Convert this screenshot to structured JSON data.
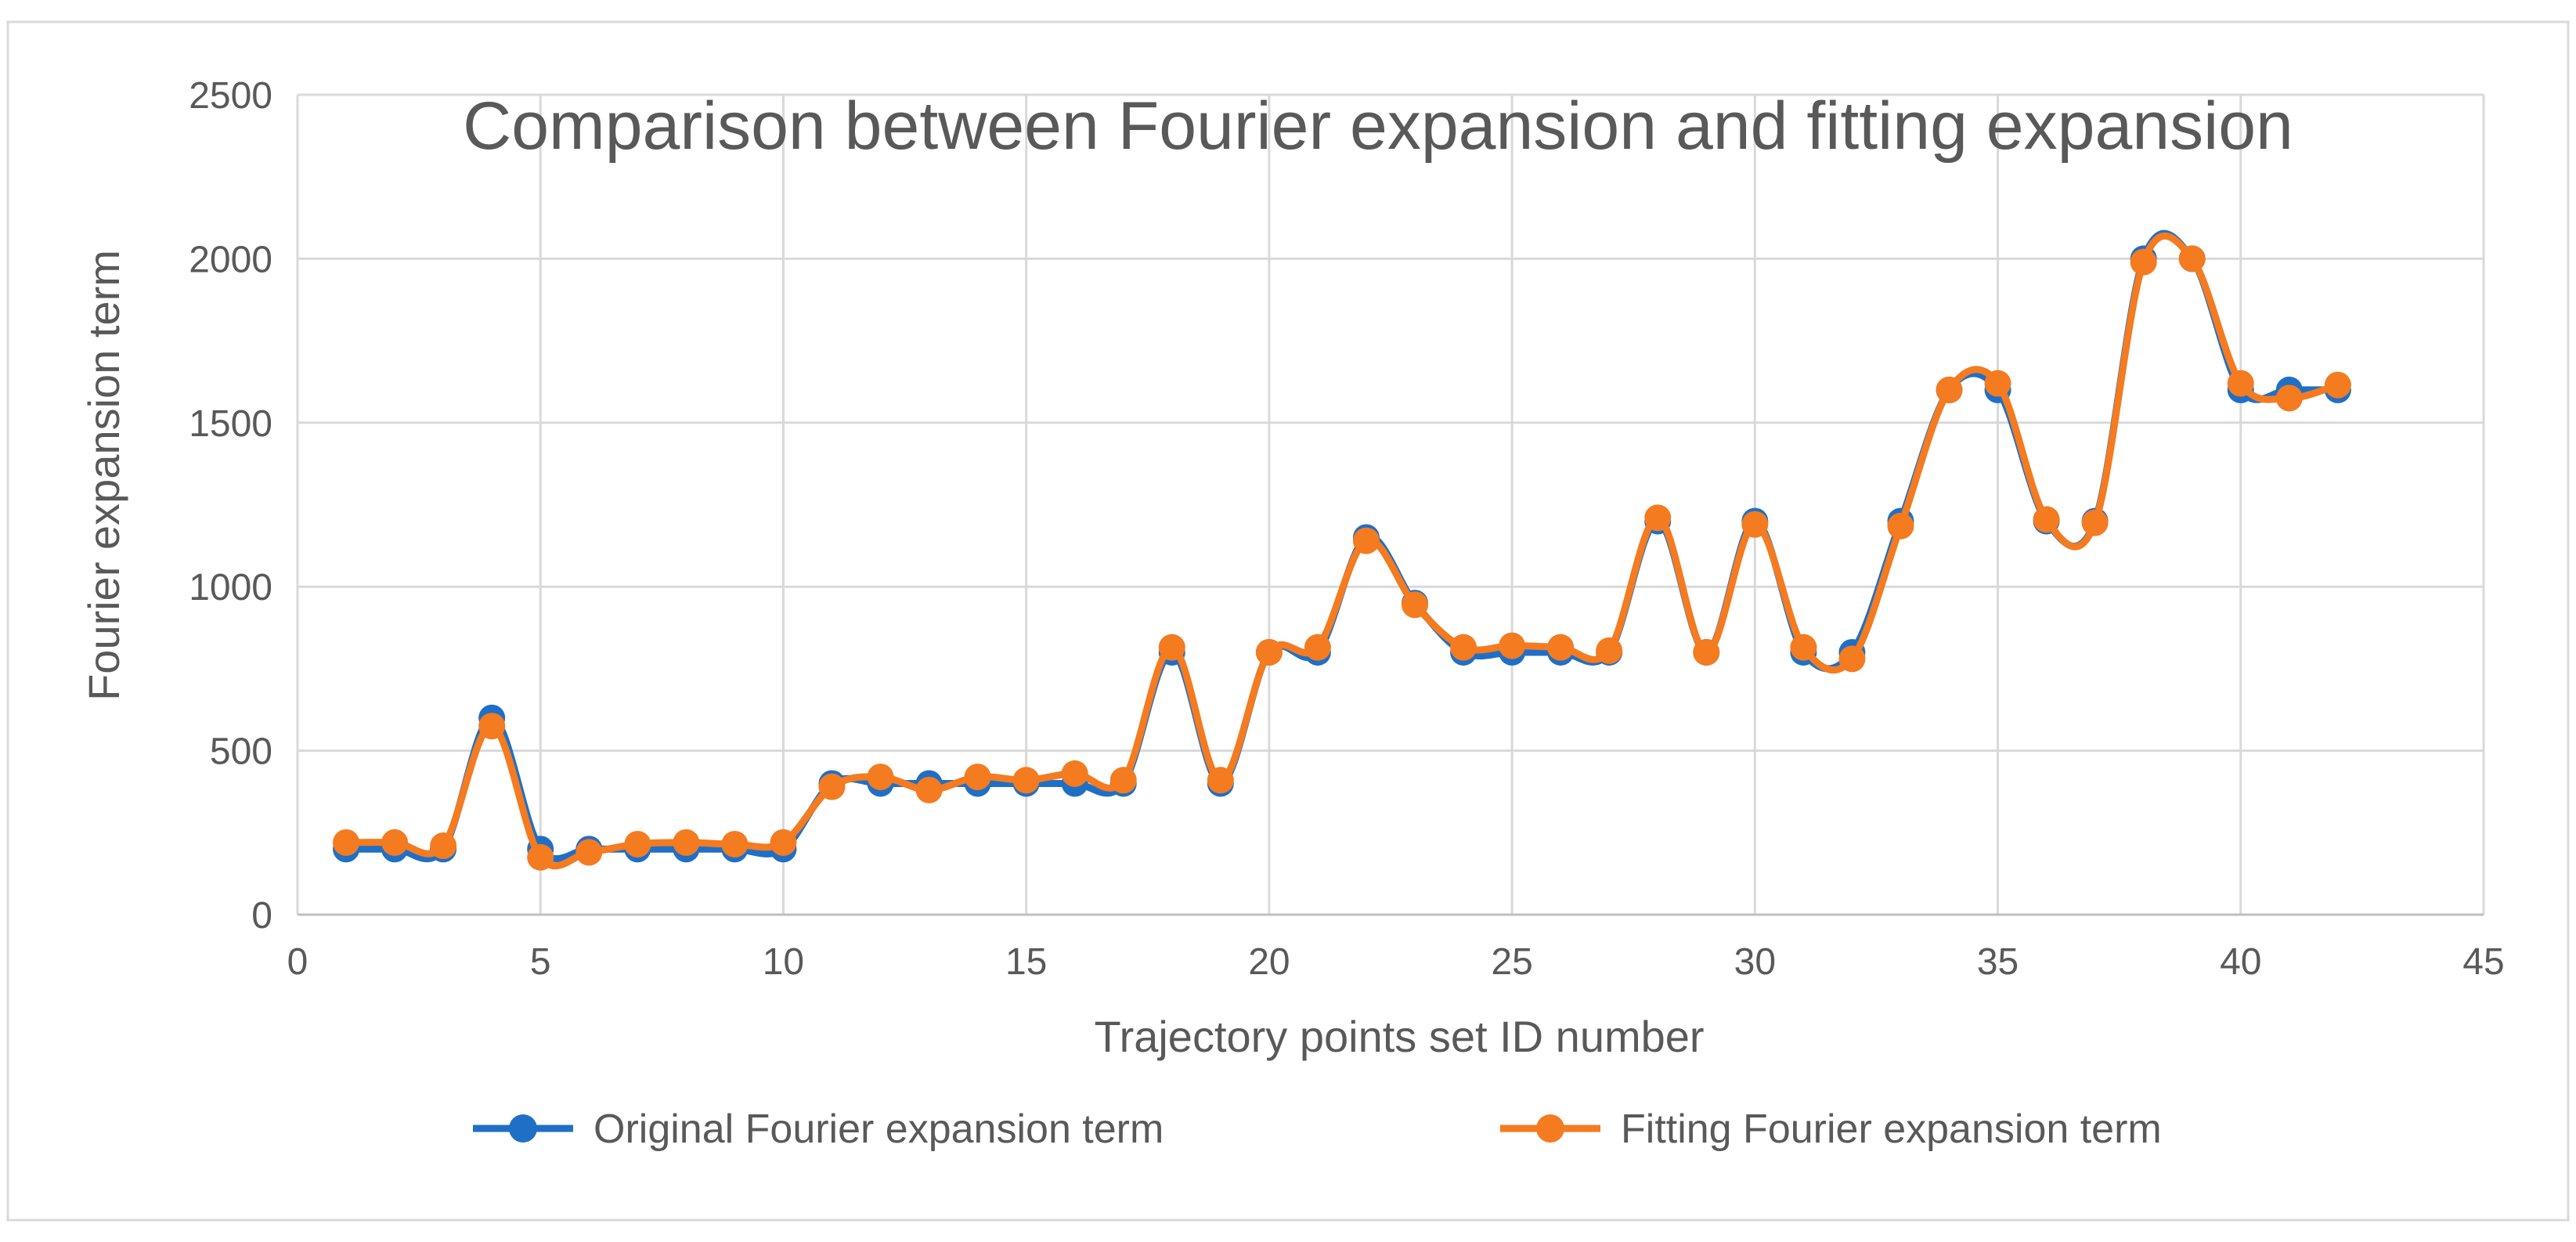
{
  "chart_data": {
    "type": "line",
    "title": "Comparison between Fourier expansion and fitting expansion",
    "xlabel": "Trajectory points set ID number",
    "ylabel": "Fourier expansion term",
    "xlim": [
      0,
      45
    ],
    "ylim": [
      0,
      2500
    ],
    "xticks": [
      0,
      5,
      10,
      15,
      20,
      25,
      30,
      35,
      40,
      45
    ],
    "yticks": [
      0,
      500,
      1000,
      1500,
      2000,
      2500
    ],
    "grid": true,
    "smooth": true,
    "legend_position": "bottom",
    "x": [
      1,
      2,
      3,
      4,
      5,
      6,
      7,
      8,
      9,
      10,
      11,
      12,
      13,
      14,
      15,
      16,
      17,
      18,
      19,
      20,
      21,
      22,
      23,
      24,
      25,
      26,
      27,
      28,
      29,
      30,
      31,
      32,
      33,
      34,
      35,
      36,
      37,
      38,
      39,
      40,
      41,
      42
    ],
    "series": [
      {
        "name": "Original Fourier expansion term",
        "color": "#1f6fc7",
        "values": [
          200,
          200,
          200,
          600,
          200,
          200,
          200,
          200,
          200,
          200,
          400,
          400,
          400,
          400,
          400,
          400,
          400,
          800,
          400,
          800,
          800,
          1150,
          950,
          800,
          800,
          800,
          800,
          1200,
          800,
          1200,
          800,
          800,
          1200,
          1600,
          1600,
          1200,
          1200,
          2000,
          2000,
          1600,
          1600,
          1600
        ]
      },
      {
        "name": "Fitting Fourier expansion term",
        "color": "#f47b20",
        "values": [
          220,
          220,
          210,
          575,
          175,
          190,
          215,
          220,
          215,
          220,
          390,
          420,
          380,
          420,
          410,
          430,
          410,
          815,
          410,
          800,
          815,
          1140,
          945,
          815,
          820,
          815,
          805,
          1210,
          800,
          1190,
          815,
          780,
          1185,
          1600,
          1620,
          1205,
          1195,
          1990,
          2000,
          1620,
          1575,
          1615
        ]
      }
    ]
  }
}
